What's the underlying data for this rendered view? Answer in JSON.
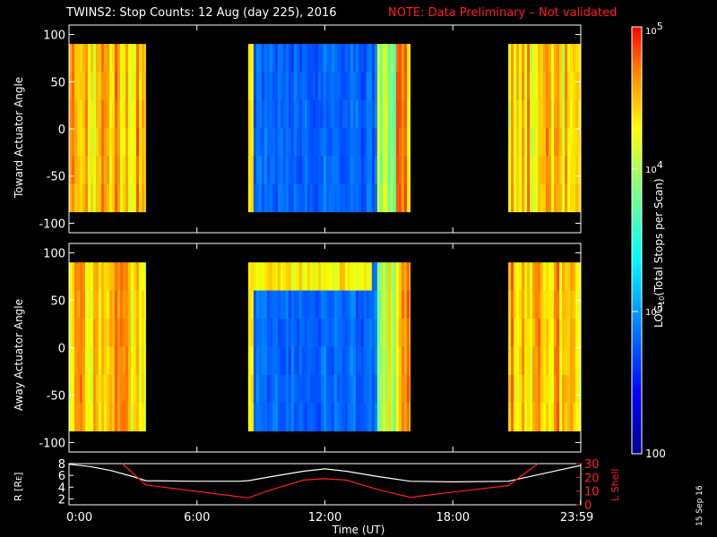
{
  "title": "TWINS2: Stop Counts: 12 Aug (day 225), 2016",
  "note": "NOTE: Data Preliminary – Not validated",
  "date_stamp": "15 Sep 16",
  "colors": {
    "background": "#000000",
    "title_note": "#ff2020",
    "text": "#ffffff",
    "r_line": "#ffffff",
    "lshell_line": "#ff2020"
  },
  "chart_data": [
    {
      "type": "heatmap",
      "ylabel": "Toward Actuator Angle",
      "ylim": [
        -110,
        110
      ],
      "yticks": [
        100,
        50,
        0,
        -50,
        -100
      ],
      "x_unit": "hours UT",
      "xlim": [
        0,
        24
      ],
      "angle_range": [
        -88,
        90
      ],
      "data_intervals": [
        {
          "start": 0.0,
          "end": 3.6,
          "level": "high"
        },
        {
          "start": 8.4,
          "end": 16.0,
          "level": "low"
        },
        {
          "start": 20.6,
          "end": 24.0,
          "level": "high"
        }
      ],
      "color_scale": "log10",
      "zlim": [
        100,
        100000
      ]
    },
    {
      "type": "heatmap",
      "ylabel": "Away Actuator Angle",
      "ylim": [
        -110,
        110
      ],
      "yticks": [
        100,
        50,
        0,
        -50,
        -100
      ],
      "x_unit": "hours UT",
      "xlim": [
        0,
        24
      ],
      "angle_range": [
        -88,
        90
      ],
      "data_intervals": [
        {
          "start": 0.0,
          "end": 3.6,
          "level": "high"
        },
        {
          "start": 8.4,
          "end": 16.0,
          "level": "low"
        },
        {
          "start": 20.6,
          "end": 24.0,
          "level": "high"
        }
      ],
      "color_scale": "log10",
      "zlim": [
        100,
        100000
      ]
    },
    {
      "type": "line",
      "ylabel": "R [RE]",
      "y2label": "L Shell",
      "x_unit": "hours UT",
      "xlim": [
        0,
        24
      ],
      "ylim": [
        1,
        8
      ],
      "yticks": [
        2,
        4,
        6,
        8
      ],
      "y2lim": [
        0,
        30
      ],
      "y2ticks": [
        0,
        10,
        20,
        30
      ],
      "xticks": [
        {
          "value": 0,
          "label": "0:00"
        },
        {
          "value": 6,
          "label": "6:00"
        },
        {
          "value": 12,
          "label": "12:00"
        },
        {
          "value": 18,
          "label": "18:00"
        },
        {
          "value": 23.983,
          "label": "23:59"
        }
      ],
      "xlabel": "Time (UT)",
      "series": [
        {
          "name": "R [RE]",
          "axis": "left",
          "points": [
            [
              0,
              7.9
            ],
            [
              1,
              7.5
            ],
            [
              2,
              6.8
            ],
            [
              3,
              5.8
            ],
            [
              3.6,
              5.1
            ],
            [
              6,
              5.0
            ],
            [
              8,
              5.0
            ],
            [
              8.4,
              5.1
            ],
            [
              9.5,
              5.8
            ],
            [
              11,
              6.7
            ],
            [
              12,
              7.1
            ],
            [
              13,
              6.7
            ],
            [
              14.5,
              5.8
            ],
            [
              16,
              5.0
            ],
            [
              18,
              4.9
            ],
            [
              20.6,
              5.0
            ],
            [
              21.5,
              5.7
            ],
            [
              23,
              6.9
            ],
            [
              24,
              7.7
            ]
          ]
        },
        {
          "name": "L Shell",
          "axis": "right",
          "points": [
            [
              2.5,
              30
            ],
            [
              3.6,
              14.5
            ],
            [
              8.4,
              5
            ],
            [
              9.5,
              11
            ],
            [
              11,
              18
            ],
            [
              12,
              19
            ],
            [
              13,
              18
            ],
            [
              14.5,
              11
            ],
            [
              16,
              5.5
            ],
            [
              20.6,
              14
            ],
            [
              22,
              30
            ]
          ]
        }
      ]
    }
  ],
  "colorbar": {
    "label": "LOG10(Total Stops per Scan)",
    "label_parts": [
      "LOG",
      "10",
      "(Total Stops per Scan)"
    ],
    "ticks": [
      {
        "value": 100000,
        "base": "10",
        "exp": "5"
      },
      {
        "value": 10000,
        "base": "10",
        "exp": "4"
      },
      {
        "value": 1000,
        "base": "10",
        "exp": "3"
      },
      {
        "value": 100,
        "base": "100",
        "exp": ""
      }
    ]
  }
}
